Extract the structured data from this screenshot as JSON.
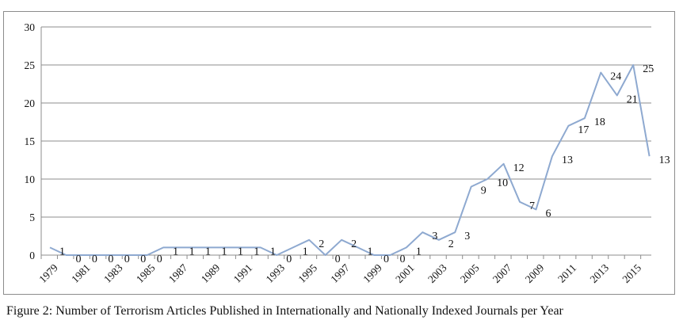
{
  "caption": "Figure 2: Number of Terrorism Articles Published in Internationally and Nationally Indexed Journals per Year",
  "chart_data": {
    "type": "line",
    "x": [
      1979,
      1980,
      1981,
      1982,
      1983,
      1984,
      1985,
      1986,
      1987,
      1988,
      1989,
      1990,
      1991,
      1992,
      1993,
      1994,
      1995,
      1996,
      1997,
      1998,
      1999,
      2000,
      2001,
      2002,
      2003,
      2004,
      2005,
      2006,
      2007,
      2008,
      2009,
      2010,
      2011,
      2012,
      2013,
      2014,
      2015,
      2016
    ],
    "x_tick_labels": [
      "1979",
      "1981",
      "1983",
      "1985",
      "1987",
      "1989",
      "1991",
      "1993",
      "1995",
      "1997",
      "1999",
      "2001",
      "2003",
      "2005",
      "2007",
      "2009",
      "2011",
      "2013",
      "2015"
    ],
    "series": [
      {
        "color": "#8ea9d0",
        "values": [
          1,
          0,
          0,
          0,
          0,
          0,
          0,
          1,
          1,
          1,
          1,
          1,
          1,
          1,
          0,
          1,
          2,
          0,
          2,
          1,
          0,
          0,
          1,
          3,
          2,
          3,
          9,
          10,
          12,
          7,
          6,
          13,
          17,
          18,
          24,
          21,
          25,
          13
        ]
      }
    ],
    "data_labels": [
      "1",
      "0",
      "0",
      "0",
      "0",
      "0",
      "0",
      "1",
      "1",
      "1",
      "1",
      "1",
      "1",
      "1",
      "0",
      "1",
      "2",
      "0",
      "2",
      "1",
      "0",
      "0",
      "1",
      "3",
      "2",
      "3",
      "9",
      "10",
      "12",
      "7",
      "6",
      "13",
      "17",
      "18",
      "24",
      "21",
      "25",
      "13"
    ],
    "ylim": [
      0,
      30
    ],
    "y_ticks": [
      0,
      5,
      10,
      15,
      20,
      25,
      30
    ],
    "grid": true,
    "gridline_color": "#8c8c8c",
    "axis_color": "#8c8c8c"
  }
}
